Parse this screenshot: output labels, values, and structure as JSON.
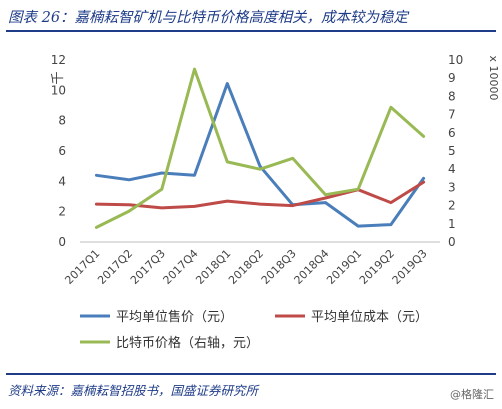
{
  "title": "图表 26：嘉楠耘智矿机与比特币价格高度相关，成本较为稳定",
  "source": "资料来源：嘉楠耘智招股书，国盛证券研究所",
  "watermark": "@格隆汇",
  "chart_data": {
    "type": "line",
    "categories": [
      "2017Q1",
      "2017Q2",
      "2017Q3",
      "2017Q4",
      "2018Q1",
      "2018Q2",
      "2018Q3",
      "2018Q4",
      "2019Q1",
      "2019Q2",
      "2019Q3"
    ],
    "y_left": {
      "label": "千",
      "min": 0,
      "max": 12,
      "ticks": [
        "0",
        "2",
        "4",
        "6",
        "8",
        "10",
        "12"
      ]
    },
    "y_right": {
      "label": "x 10000",
      "min": 0,
      "max": 10,
      "ticks": [
        "0",
        "1",
        "2",
        "3",
        "4",
        "5",
        "6",
        "7",
        "8",
        "9",
        "10"
      ]
    },
    "series": [
      {
        "name": "平均单位售价（元）",
        "axis": "left",
        "color": "#4a7ebb",
        "values": [
          4.4,
          4.1,
          4.55,
          4.4,
          10.45,
          5.0,
          2.45,
          2.6,
          1.05,
          1.15,
          4.2
        ]
      },
      {
        "name": "平均单位成本（元）",
        "axis": "left",
        "color": "#be4b48",
        "values": [
          2.5,
          2.45,
          2.25,
          2.35,
          2.7,
          2.5,
          2.4,
          2.9,
          3.45,
          2.6,
          3.95
        ]
      },
      {
        "name": "比特币价格（右轴，元）",
        "axis": "right",
        "color": "#98b954",
        "values": [
          0.8,
          1.7,
          2.9,
          9.5,
          4.4,
          4.0,
          4.6,
          2.6,
          2.9,
          7.4,
          5.8
        ]
      }
    ],
    "grid": false,
    "legend_placement": "bottom"
  }
}
